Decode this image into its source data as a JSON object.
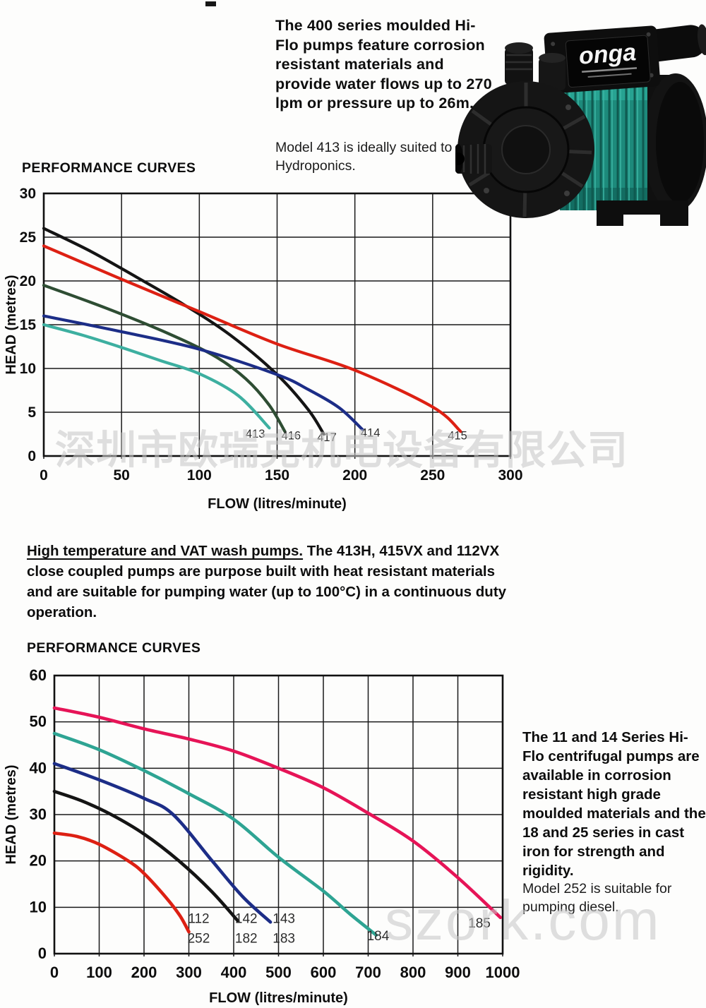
{
  "intro": {
    "bold": "The 400 series moulded Hi-Flo pumps feature corrosion resistant materials and provide water flows up to 270 lpm or pressure up to 26m.",
    "note": "Model 413 is ideally suited to Hydroponics."
  },
  "sections": {
    "curves1": "PERFORMANCE CURVES",
    "curves2": "PERFORMANCE CURVES"
  },
  "mid": {
    "lead": "High temperature and VAT wash pumps.",
    "rest": " The 413H, 415VX and 112VX close coupled pumps are purpose built with heat resistant materials and are suitable for pumping water (up to 100°C) in a continuous duty operation."
  },
  "side": {
    "bold": "The 11 and 14 Series Hi-Flo centrifugal pumps are available in corrosion resistant high grade moulded materials and the 18 and 25 series in cast iron for strength and rigidity.",
    "note": "Model 252 is suitable for pumping diesel."
  },
  "watermarks": {
    "cn": "深圳市欧瑞克机电设备有限公司",
    "site": "szork.com"
  },
  "pump": {
    "logo": "onga"
  },
  "chart_data": [
    {
      "type": "line",
      "title": "PERFORMANCE CURVES",
      "xlabel": "FLOW (litres/minute)",
      "ylabel": "HEAD (metres)",
      "xlim": [
        0,
        300
      ],
      "ylim": [
        0,
        30
      ],
      "xticks": [
        0,
        50,
        100,
        150,
        200,
        250,
        300
      ],
      "yticks": [
        0,
        5,
        10,
        15,
        20,
        25,
        30
      ],
      "grid": true,
      "legend_position": "inline-labels",
      "series": [
        {
          "name": "417",
          "color": "#141414",
          "points": [
            [
              0,
              26
            ],
            [
              30,
              23.4
            ],
            [
              60,
              20.4
            ],
            [
              90,
              17.3
            ],
            [
              120,
              13.8
            ],
            [
              150,
              9.3
            ],
            [
              170,
              5.3
            ],
            [
              180,
              2.5
            ]
          ],
          "label": {
            "x": 182,
            "y": 1.7,
            "lines": [
              "417"
            ]
          }
        },
        {
          "name": "415",
          "color": "#dd2013",
          "points": [
            [
              0,
              24
            ],
            [
              50,
              20.2
            ],
            [
              100,
              16.5
            ],
            [
              150,
              12.8
            ],
            [
              200,
              9.8
            ],
            [
              250,
              5.6
            ],
            [
              268,
              2.8
            ]
          ],
          "label": {
            "x": 266,
            "y": 1.9,
            "lines": [
              "415"
            ]
          }
        },
        {
          "name": "416",
          "color": "#2e4d33",
          "points": [
            [
              0,
              19.5
            ],
            [
              40,
              16.9
            ],
            [
              80,
              14.0
            ],
            [
              110,
              11.4
            ],
            [
              130,
              8.8
            ],
            [
              145,
              5.8
            ],
            [
              155,
              2.8
            ]
          ],
          "label": {
            "x": 159,
            "y": 1.9,
            "lines": [
              "416"
            ]
          }
        },
        {
          "name": "414",
          "color": "#1c2d87",
          "points": [
            [
              0,
              16
            ],
            [
              50,
              14.2
            ],
            [
              100,
              12.2
            ],
            [
              150,
              9.3
            ],
            [
              170,
              7.6
            ],
            [
              190,
              5.5
            ],
            [
              205,
              3.0
            ]
          ],
          "label": {
            "x": 210,
            "y": 2.2,
            "lines": [
              "414"
            ]
          }
        },
        {
          "name": "413",
          "color": "#3dafa0",
          "points": [
            [
              0,
              15
            ],
            [
              25,
              13.8
            ],
            [
              50,
              12.4
            ],
            [
              75,
              10.9
            ],
            [
              100,
              9.4
            ],
            [
              125,
              6.9
            ],
            [
              145,
              3.2
            ]
          ],
          "label": {
            "x": 136,
            "y": 2.1,
            "lines": [
              "413"
            ]
          }
        }
      ]
    },
    {
      "type": "line",
      "title": "PERFORMANCE CURVES",
      "xlabel": "FLOW (litres/minute)",
      "ylabel": "HEAD (metres)",
      "xlim": [
        0,
        1000
      ],
      "ylim": [
        0,
        60
      ],
      "xticks": [
        0,
        100,
        200,
        300,
        400,
        500,
        600,
        700,
        800,
        900,
        1000
      ],
      "yticks": [
        0,
        10,
        20,
        30,
        40,
        50,
        60
      ],
      "grid": true,
      "legend_position": "inline-labels",
      "series": [
        {
          "name": "185",
          "color": "#e61457",
          "points": [
            [
              0,
              53
            ],
            [
              100,
              51
            ],
            [
              200,
              48.5
            ],
            [
              300,
              46.3
            ],
            [
              400,
              43.7
            ],
            [
              500,
              40
            ],
            [
              600,
              35.8
            ],
            [
              700,
              30.3
            ],
            [
              800,
              24.3
            ],
            [
              900,
              16.4
            ],
            [
              995,
              7.8
            ]
          ],
          "label": {
            "x": 948,
            "y": 5.6,
            "lines": [
              "185"
            ]
          }
        },
        {
          "name": "184",
          "color": "#2ea493",
          "points": [
            [
              0,
              47.5
            ],
            [
              100,
              44
            ],
            [
              200,
              39.5
            ],
            [
              300,
              34.5
            ],
            [
              400,
              29
            ],
            [
              500,
              20.8
            ],
            [
              600,
              13.5
            ],
            [
              660,
              8.5
            ],
            [
              718,
              4.0
            ]
          ],
          "label": {
            "x": 722,
            "y": 2.9,
            "lines": [
              "184"
            ]
          }
        },
        {
          "name": "143 / 183",
          "color": "#1c2d87",
          "points": [
            [
              0,
              41
            ],
            [
              100,
              37.5
            ],
            [
              200,
              33.5
            ],
            [
              265,
              30
            ],
            [
              352,
              20
            ],
            [
              420,
              12.3
            ],
            [
              482,
              6.8
            ]
          ],
          "label": {
            "x": 512,
            "y": 6.6,
            "lines": [
              "143",
              "183"
            ]
          }
        },
        {
          "name": "142 / 182",
          "color": "#141414",
          "points": [
            [
              0,
              35
            ],
            [
              60,
              33
            ],
            [
              127,
              30
            ],
            [
              200,
              25.8
            ],
            [
              278,
              20
            ],
            [
              350,
              13.5
            ],
            [
              410,
              7.0
            ]
          ],
          "label": {
            "x": 428,
            "y": 6.6,
            "lines": [
              "142",
              "182"
            ]
          }
        },
        {
          "name": "112 / 252",
          "color": "#dd2013",
          "points": [
            [
              0,
              26
            ],
            [
              50,
              25.3
            ],
            [
              100,
              23.6
            ],
            [
              165,
              20
            ],
            [
              200,
              17.3
            ],
            [
              250,
              12
            ],
            [
              280,
              8.2
            ],
            [
              300,
              4.7
            ]
          ],
          "label": {
            "x": 322,
            "y": 6.6,
            "lines": [
              "112",
              "252"
            ]
          }
        }
      ]
    }
  ]
}
